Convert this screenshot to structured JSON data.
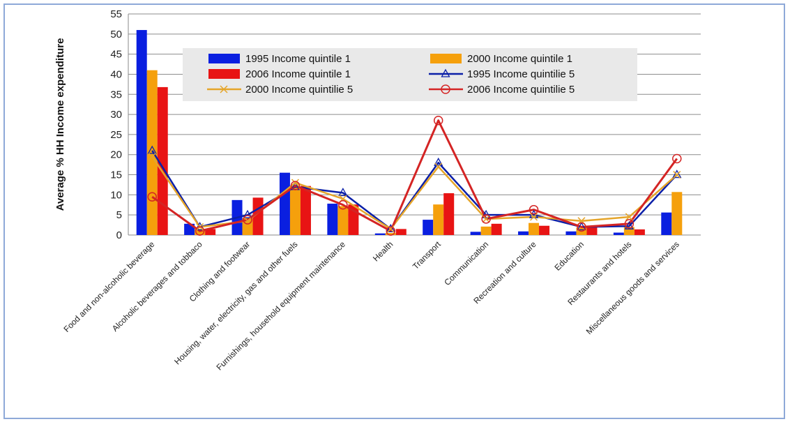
{
  "chart_data": {
    "type": "bar",
    "title": "",
    "xlabel": "",
    "ylabel": "Average % HH Income expenditure",
    "ylim": [
      0,
      55
    ],
    "yticks": [
      0,
      5,
      10,
      15,
      20,
      25,
      30,
      35,
      40,
      45,
      50,
      55
    ],
    "grid": true,
    "legend_position": "top-center",
    "categories": [
      "Food and non-alcoholic beverage",
      "Alcoholic beverages and tobbaco",
      "Clothing and footwear",
      "Housing, water, electricity, gas and other fuels",
      "Furnishings, household equipment maintenance",
      "Health",
      "Transport",
      "Communication",
      "Recreation and culture",
      "Education",
      "Restaurants and hotels",
      "Miscellaneous goods and services"
    ],
    "series": [
      {
        "name": "1995 Income quintile 1",
        "kind": "bar",
        "color": "#0a1fe0",
        "values": [
          51,
          2.8,
          8.7,
          15.5,
          7.8,
          0.4,
          3.8,
          0.8,
          0.9,
          0.9,
          0.6,
          5.6
        ]
      },
      {
        "name": "2000 Income quintile 1",
        "kind": "bar",
        "color": "#f5a00c",
        "values": [
          41,
          1.5,
          4.2,
          12,
          7.2,
          0.5,
          7.6,
          2.1,
          3.0,
          1.8,
          2.0,
          10.7
        ]
      },
      {
        "name": "2006 Income quintile 1",
        "kind": "bar",
        "color": "#e81414",
        "values": [
          36.8,
          1.5,
          9.3,
          12.2,
          7.6,
          1.5,
          10.4,
          2.8,
          2.3,
          2.2,
          1.4,
          0
        ]
      },
      {
        "name": "1995 Income quintilie 5",
        "kind": "line",
        "marker": "triangle",
        "color": "#0b1fa8",
        "values": [
          21,
          2.0,
          5.0,
          12.0,
          10.5,
          1.5,
          18.0,
          5.0,
          5.0,
          2.0,
          2.2,
          15.0
        ]
      },
      {
        "name": "2000 Income quintilie 5",
        "kind": "line",
        "marker": "x",
        "color": "#e5a52a",
        "values": [
          19.5,
          2.0,
          3.5,
          13.0,
          9.0,
          1.5,
          17.0,
          4.0,
          4.5,
          3.5,
          4.5,
          15.0
        ]
      },
      {
        "name": "2006 Income quintilie 5",
        "kind": "line",
        "marker": "circle",
        "color": "#d42424",
        "values": [
          9.5,
          1.0,
          3.8,
          12.3,
          7.5,
          1.0,
          28.5,
          4.0,
          6.3,
          2.0,
          2.8,
          19.0
        ]
      }
    ]
  }
}
